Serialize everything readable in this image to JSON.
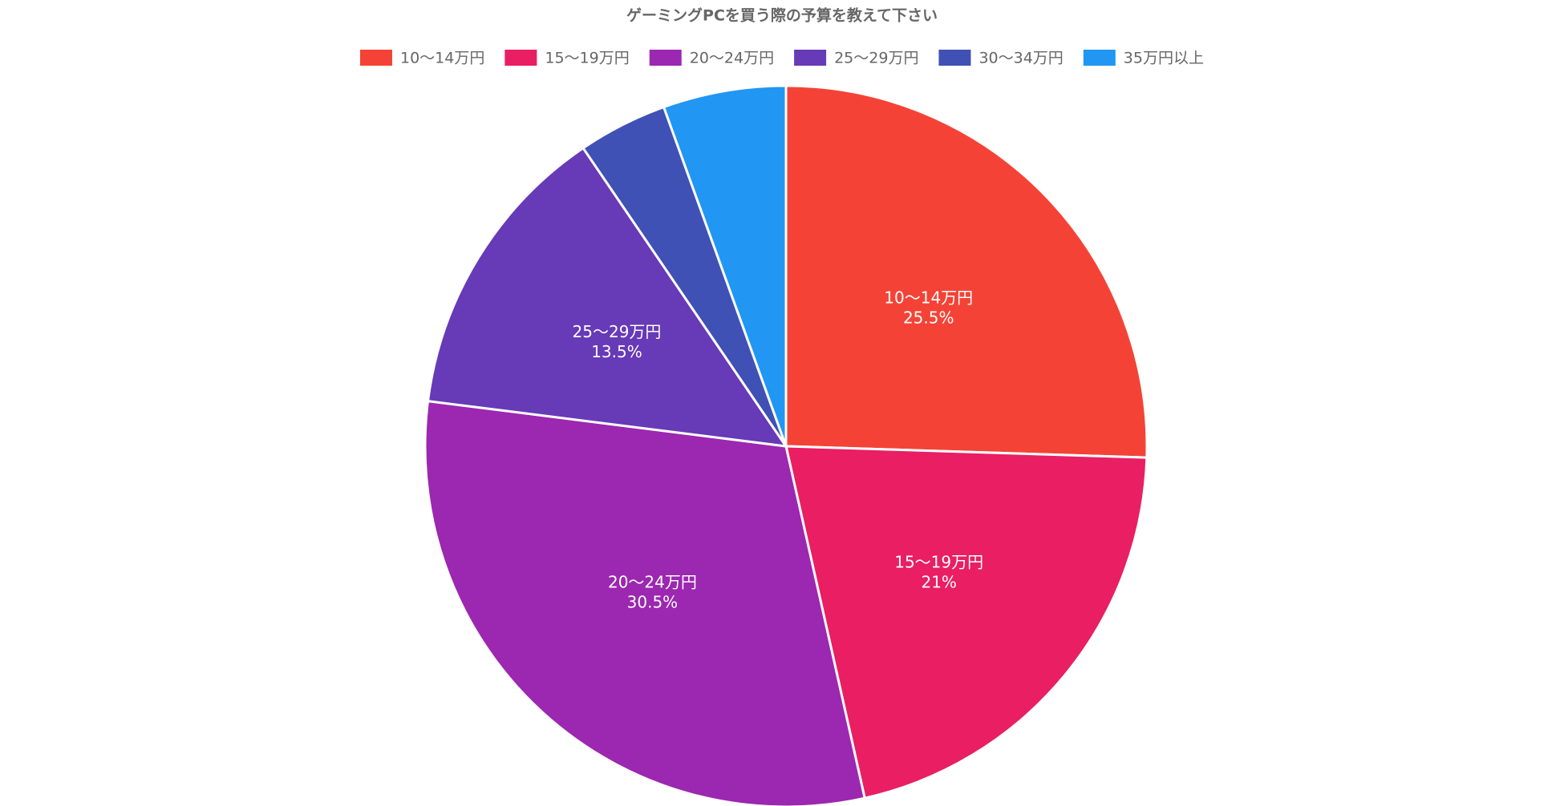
{
  "chart_data": {
    "type": "pie",
    "title": "ゲーミングPCを買う際の予算を教えて下さい",
    "categories": [
      "10〜14万円",
      "15〜19万円",
      "20〜24万円",
      "25〜29万円",
      "30〜34万円",
      "35万円以上"
    ],
    "values": [
      25.5,
      21,
      30.5,
      13.5,
      4,
      5.5
    ],
    "value_labels": [
      "25.5%",
      "21%",
      "30.5%",
      "13.5%",
      null,
      null
    ],
    "colors": [
      "#f44336",
      "#e91e63",
      "#9c27b0",
      "#673ab7",
      "#3f51b5",
      "#2196f3"
    ],
    "legend": "top"
  }
}
